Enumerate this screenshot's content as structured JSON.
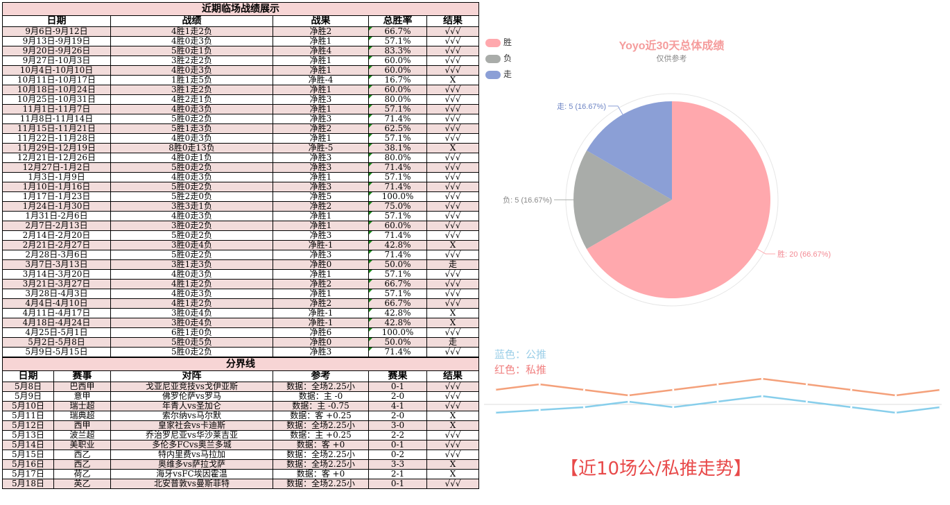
{
  "table1": {
    "title": "近期临场战绩展示",
    "headers": [
      "日期",
      "战绩",
      "战果",
      "总胜率",
      "结果"
    ],
    "rows": [
      [
        "9月6日-9月12日",
        "4胜1走2负",
        "净胜2",
        "66.7%",
        "√√√"
      ],
      [
        "9月13日-9月19日",
        "4胜0走3负",
        "净胜1",
        "57.1%",
        "√√√"
      ],
      [
        "9月20日-9月26日",
        "5胜0走1负",
        "净胜4",
        "83.3%",
        "√√√"
      ],
      [
        "9月27日-10月3日",
        "3胜2走2负",
        "净胜1",
        "60.0%",
        "√√√"
      ],
      [
        "10月4日-10月10日",
        "4胜0走3负",
        "净胜1",
        "60.0%",
        "√√√"
      ],
      [
        "10月11日-10月17日",
        "1胜1走5负",
        "净胜-4",
        "16.7%",
        "X"
      ],
      [
        "10月18日-10月24日",
        "3胜1走2负",
        "净胜1",
        "60.0%",
        "√√√"
      ],
      [
        "10月25日-10月31日",
        "4胜2走1负",
        "净胜3",
        "80.0%",
        "√√√"
      ],
      [
        "11月1日-11月7日",
        "4胜0走3负",
        "净胜1",
        "57.1%",
        "√√√"
      ],
      [
        "11月8日-11月14日",
        "5胜0走2负",
        "净胜3",
        "71.4%",
        "√√√"
      ],
      [
        "11月15日-11月21日",
        "5胜1走3负",
        "净胜2",
        "62.5%",
        "√√√"
      ],
      [
        "11月22日-11月28日",
        "4胜0走3负",
        "净胜1",
        "57.1%",
        "√√√"
      ],
      [
        "11月29日-12月19日",
        "8胜0走13负",
        "净胜-5",
        "38.1%",
        "X"
      ],
      [
        "12月21日-12月26日",
        "4胜0走1负",
        "净胜3",
        "80.0%",
        "√√√"
      ],
      [
        "12月27日-1月2日",
        "5胜0走2负",
        "净胜3",
        "71.4%",
        "√√√"
      ],
      [
        "1月3日-1月9日",
        "4胜0走3负",
        "净胜1",
        "57.1%",
        "√√√"
      ],
      [
        "1月10日-1月16日",
        "5胜0走2负",
        "净胜3",
        "71.4%",
        "√√√"
      ],
      [
        "1月17日-1月23日",
        "5胜2走0负",
        "净胜5",
        "100.0%",
        "√√√"
      ],
      [
        "1月24日-1月30日",
        "3胜3走1负",
        "净胜2",
        "75.0%",
        "√√√"
      ],
      [
        "1月31日-2月6日",
        "4胜0走3负",
        "净胜1",
        "57.1%",
        "√√√"
      ],
      [
        "2月7日-2月13日",
        "3胜0走2负",
        "净胜1",
        "60.0%",
        "√√√"
      ],
      [
        "2月14日-2月20日",
        "5胜0走2负",
        "净胜3",
        "71.4%",
        "√√√"
      ],
      [
        "2月21日-2月27日",
        "3胜0走4负",
        "净胜-1",
        "42.8%",
        "X"
      ],
      [
        "2月28日-3月6日",
        "5胜0走2负",
        "净胜3",
        "71.4%",
        "√√√"
      ],
      [
        "3月7日-3月13日",
        "3胜1走3负",
        "净胜0",
        "50.0%",
        "走"
      ],
      [
        "3月14日-3月20日",
        "4胜0走3负",
        "净胜1",
        "57.1%",
        "√√√"
      ],
      [
        "3月21日-3月27日",
        "4胜1走2负",
        "净胜2",
        "66.7%",
        "√√√"
      ],
      [
        "3月28日-4月3日",
        "4胜0走3负",
        "净胜1",
        "57.1%",
        "√√√"
      ],
      [
        "4月4日-4月10日",
        "4胜1走2负",
        "净胜2",
        "66.7%",
        "√√√"
      ],
      [
        "4月11日-4月17日",
        "3胜0走4负",
        "净胜-1",
        "42.8%",
        "X"
      ],
      [
        "4月18日-4月24日",
        "3胜0走4负",
        "净胜-1",
        "42.8%",
        "X"
      ],
      [
        "4月25日-5月1日",
        "6胜1走0负",
        "净胜6",
        "100.0%",
        "√√√"
      ],
      [
        "5月2日-5月8日",
        "5胜0走5负",
        "净胜0",
        "50.0%",
        "走"
      ],
      [
        "5月9日-5月15日",
        "5胜0走2负",
        "净胜3",
        "71.4%",
        "√√√"
      ]
    ]
  },
  "table2": {
    "title": "分界线",
    "headers": [
      "日期",
      "赛事",
      "对阵",
      "参考",
      "赛果",
      "结果"
    ],
    "rows": [
      [
        "5月8日",
        "巴西甲",
        "戈亚尼亚竞技vs戈伊亚斯",
        "数据：全场2.25小",
        "0-1",
        "√√√"
      ],
      [
        "5月9日",
        "意甲",
        "佛罗伦萨vs罗马",
        "数据：主 -0",
        "2-0",
        "√√√"
      ],
      [
        "5月10日",
        "瑞士超",
        "年青人vs圣加仑",
        "数据：主 -0.75",
        "4-1",
        "√√√"
      ],
      [
        "5月11日",
        "瑞典超",
        "索尔纳vs马尔默",
        "数据：客 +0.25",
        "2-0",
        "X"
      ],
      [
        "5月12日",
        "西甲",
        "皇家社会vs卡迪斯",
        "数据：全场2.25小",
        "3-0",
        "X"
      ],
      [
        "5月13日",
        "波兰超",
        "乔治罗尼亚vs华沙莱吉亚",
        "数据：主 +0.25",
        "2-2",
        "√√√"
      ],
      [
        "5月14日",
        "美职业",
        "多伦多FCvs奥兰多城",
        "数据：客 +0",
        "0-1",
        "√√√"
      ],
      [
        "5月15日",
        "西乙",
        "特内里费vs马拉加",
        "数据：全场2.25小",
        "0-2",
        "√√√"
      ],
      [
        "5月16日",
        "西乙",
        "奥维多vs萨拉戈萨",
        "数据：全场2.25小",
        "3-3",
        "X"
      ],
      [
        "5月17日",
        "荷乙",
        "海牙vsFC埃因霍温",
        "数据：客 +0",
        "2-1",
        "X"
      ],
      [
        "5月18日",
        "英乙",
        "北安普敦vs曼斯菲特",
        "数据：全场2.25小",
        "0-1",
        "√√√"
      ]
    ]
  },
  "pie": {
    "title": "Yoyo近30天总体成绩",
    "subtitle": "仅供参考",
    "legend": [
      "胜",
      "负",
      "走"
    ],
    "colors": {
      "胜": "#ffa8ad",
      "负": "#a9aca9",
      "走": "#8b9fd6"
    },
    "labels": [
      "胜: 20 (66.67%)",
      "负: 5 (16.67%)",
      "走: 5 (16.67%)"
    ]
  },
  "trend": {
    "legend_blue": "蓝色：公推",
    "legend_red": "红色：私推",
    "title": "【近10场公/私推走势】",
    "colors": {
      "public": "#87ceeb",
      "private": "#f4a07a"
    }
  },
  "chart_data": [
    {
      "type": "pie",
      "title": "Yoyo近30天总体成绩",
      "subtitle": "仅供参考",
      "categories": [
        "胜",
        "负",
        "走"
      ],
      "values": [
        20,
        5,
        5
      ],
      "percent": [
        66.67,
        16.67,
        16.67
      ],
      "legend": "top-left"
    },
    {
      "type": "line",
      "title": "【近10场公/私推走势】",
      "x": [
        1,
        2,
        3,
        4,
        5,
        6,
        7,
        8,
        9,
        10,
        11
      ],
      "series": [
        {
          "name": "红色：私推",
          "values": [
            4,
            6,
            4,
            2,
            4,
            6,
            8,
            6,
            4,
            2,
            4
          ]
        },
        {
          "name": "蓝色：公推",
          "values": [
            -3,
            -2,
            -1,
            1,
            -1,
            1,
            3,
            1,
            -1,
            -3,
            -1
          ]
        }
      ],
      "grid": false
    }
  ]
}
